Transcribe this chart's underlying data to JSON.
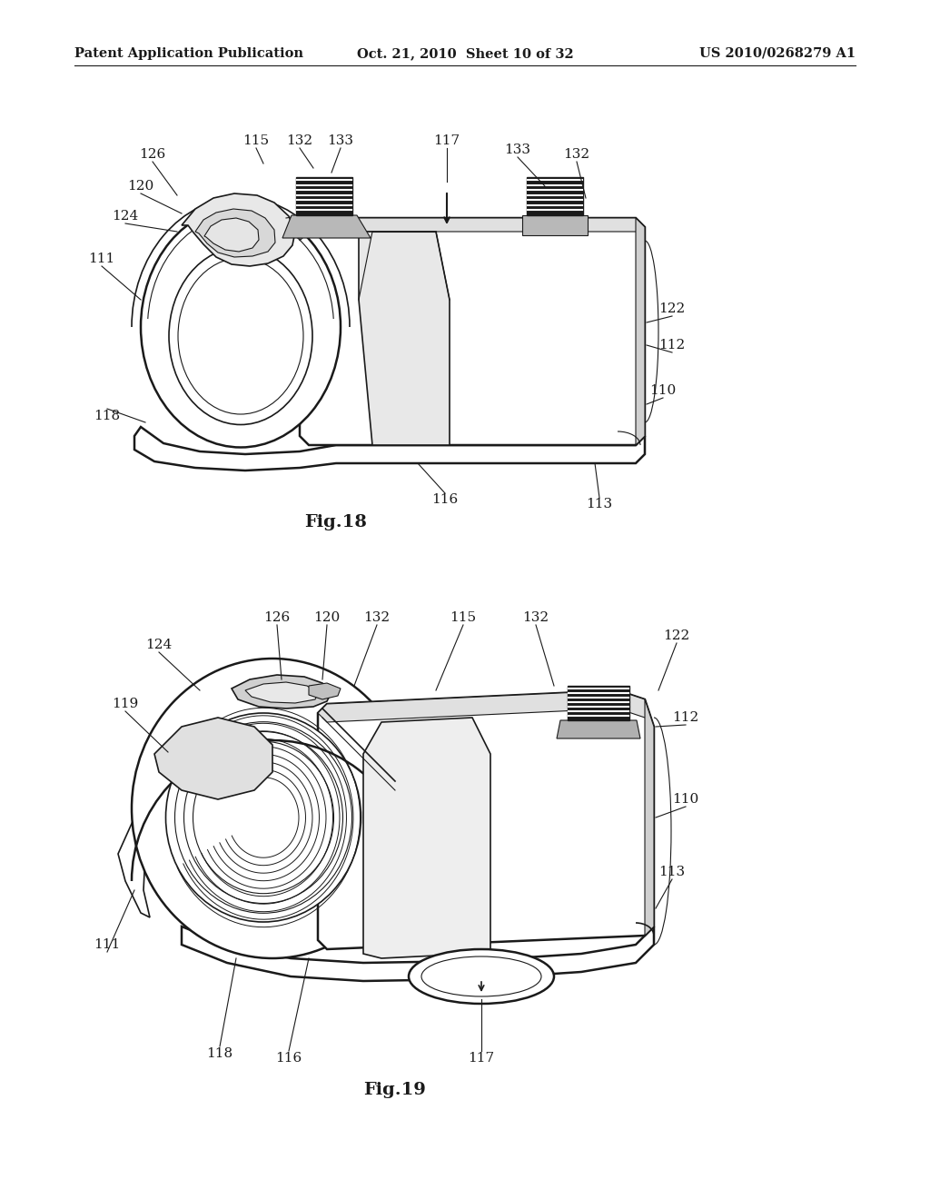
{
  "bg_color": "#ffffff",
  "fig_width": 10.24,
  "fig_height": 13.2,
  "dpi": 100,
  "header": {
    "left": "Patent Application Publication",
    "center": "Oct. 21, 2010  Sheet 10 of 32",
    "right": "US 2010/0268279 A1",
    "fontsize": 10.5
  },
  "fig18_label": "Fig.18",
  "fig19_label": "Fig.19"
}
